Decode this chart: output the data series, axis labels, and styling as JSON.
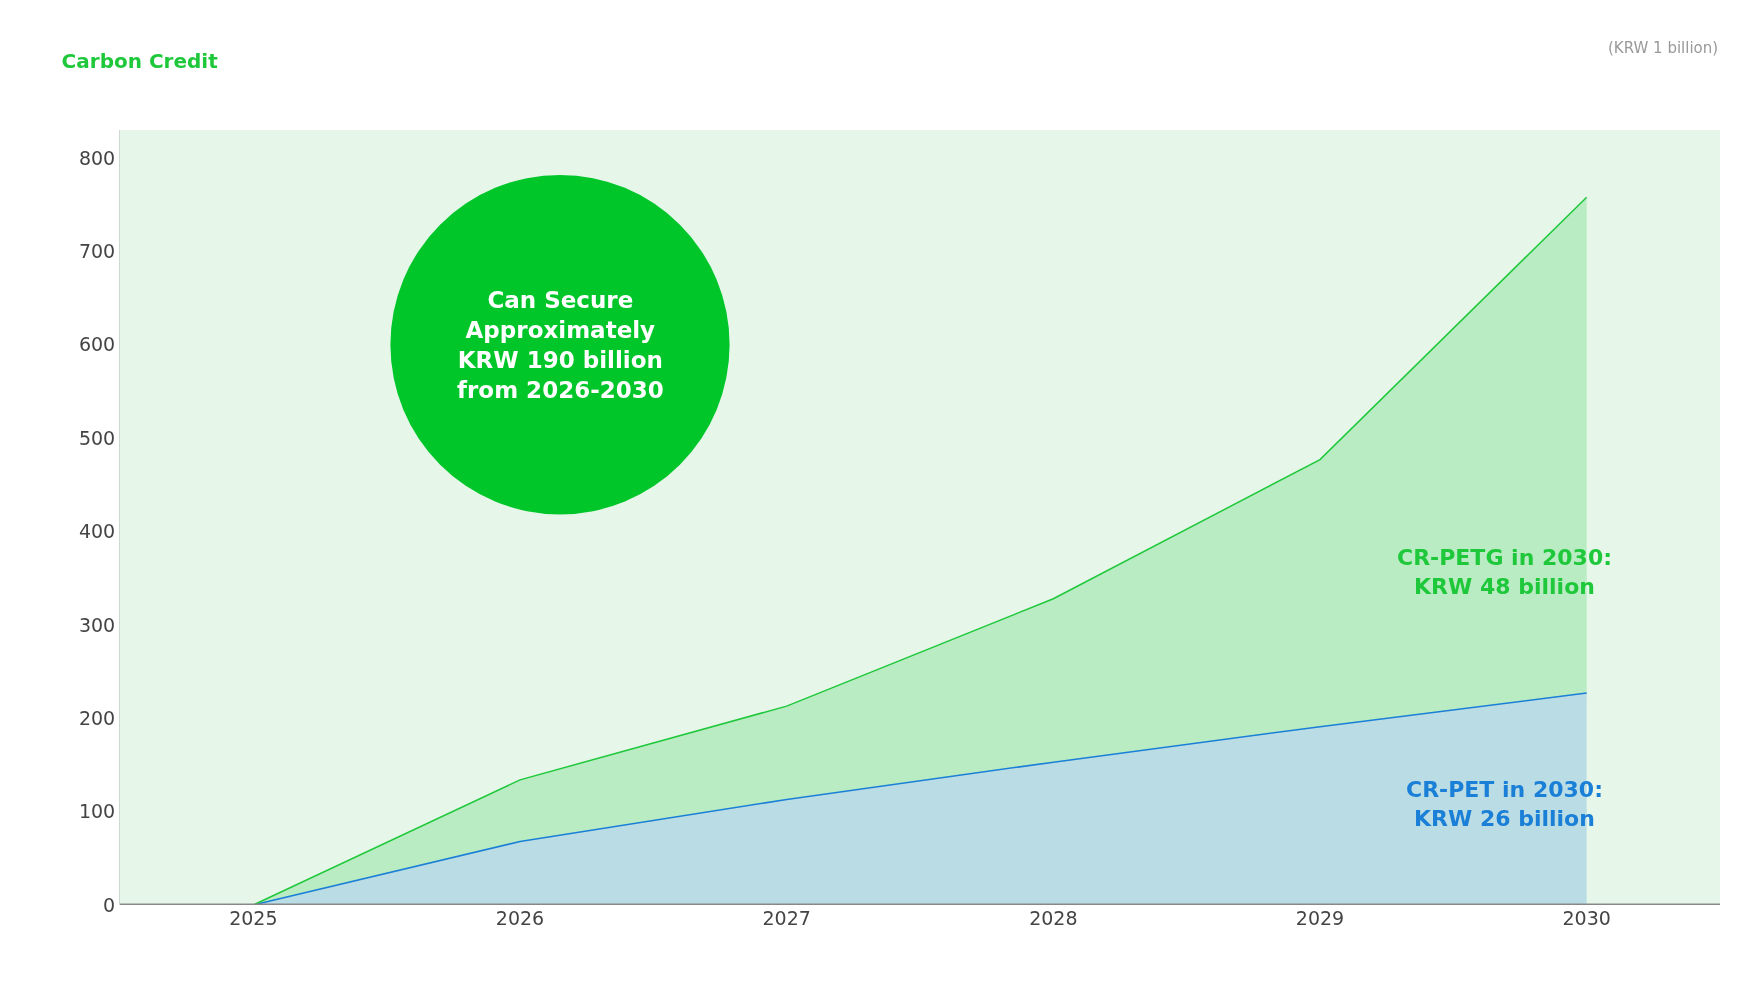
{
  "chart_data": {
    "type": "area",
    "title": "Carbon Credit",
    "stacked": true,
    "x": [
      2025,
      2026,
      2027,
      2028,
      2029,
      2030
    ],
    "series": [
      {
        "color": "#1a7fd6",
        "values": [
          0,
          68,
          113,
          153,
          191,
          227
        ]
      },
      {
        "color": "#1ec83a",
        "values": [
          0,
          66,
          100,
          175,
          286,
          531
        ]
      }
    ],
    "xlim": [
      2024.5,
      2030.5
    ],
    "xticks": [
      2025,
      2026,
      2027,
      2028,
      2029,
      2030
    ],
    "ylim": [
      0,
      830
    ],
    "yticks": [
      0,
      100,
      200,
      300,
      400,
      500,
      600,
      700,
      800
    ],
    "grid": false,
    "marker": "none",
    "line_style": "solid",
    "annotations": [
      "(KRW 1 billion)",
      "Can Secure\nApproximately\nKRW 190 billion\nfrom 2026-2030",
      "CR-PETG in 2030:\nKRW 48 billion",
      "CR-PET in 2030:\nKRW 26 billion"
    ]
  }
}
